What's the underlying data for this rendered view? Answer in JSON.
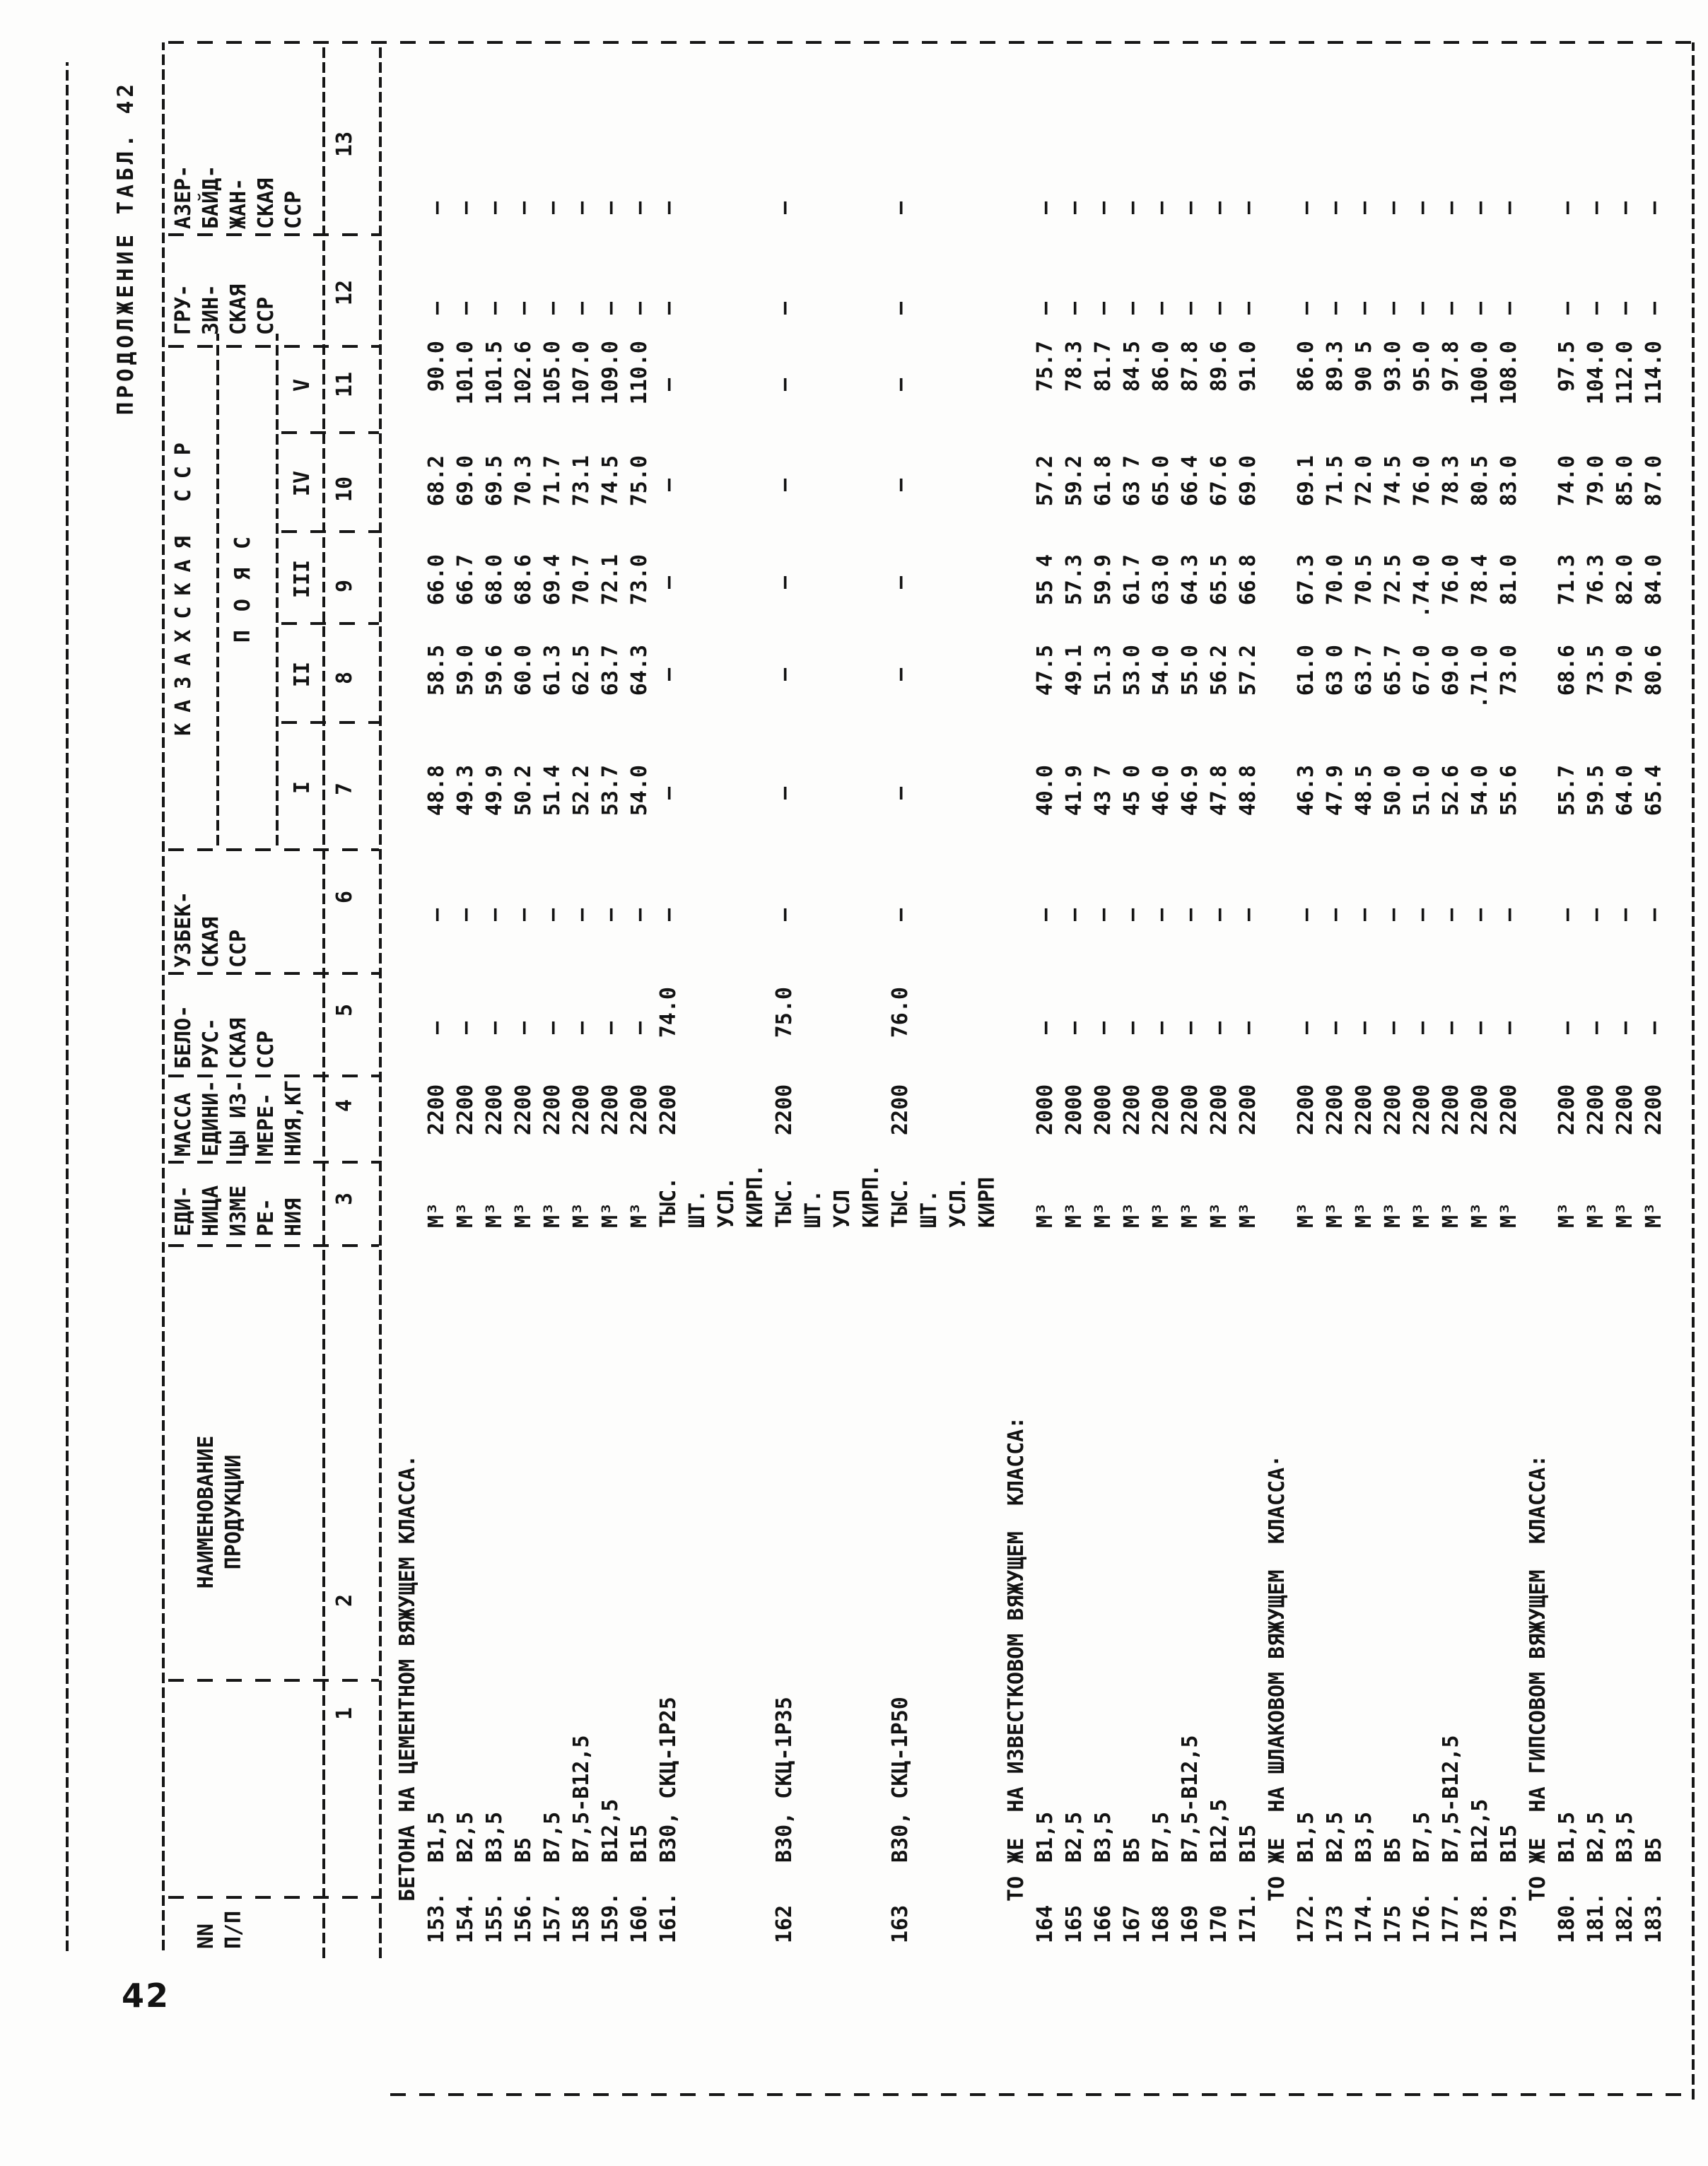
{
  "page_number": "42",
  "caption": "ПРОДОЛЖЕНИЕ ТАБЛ. 42",
  "header": {
    "col1": [
      "NN",
      "П/П"
    ],
    "col2": [
      "НАИМЕНОВАНИЕ",
      "ПРОДУКЦИИ"
    ],
    "col3": [
      "ЕДИ-",
      "НИЦА",
      "ИЗМЕ",
      "РЕ-",
      "НИЯ"
    ],
    "col4": [
      "МАССА",
      "ЕДИНИ-",
      "ЦЫ ИЗ-",
      "МЕРЕ-",
      "НИЯ,КГ"
    ],
    "col5": [
      "БЕЛО-",
      "РУС-",
      "СКАЯ",
      "ССР"
    ],
    "col6": [
      "УЗБЕК-",
      "СКАЯ",
      "ССР"
    ],
    "kazakh": {
      "title": "КАЗАХСКАЯ ССР",
      "subtitle": "ПОЯС",
      "belts": [
        "I",
        "II",
        "III",
        "IV",
        "V"
      ]
    },
    "col12": [
      "ГРУ-",
      "ЗИН-",
      "СКАЯ",
      "ССР"
    ],
    "col13": [
      "АЗЕР-",
      "БАЙД-",
      "ЖАН-",
      "СКАЯ",
      "ССР"
    ]
  },
  "column_numbers": [
    "1",
    "2",
    "3",
    "4",
    "5",
    "6",
    "7",
    "8",
    "9",
    "10",
    "11",
    "12",
    "13"
  ],
  "rows": [
    {
      "section": "БЕТОНА НА ЦЕМЕНТНОМ ВЯЖУЩЕМ КЛАССА."
    },
    {
      "num": "153.",
      "name": "В1,5",
      "unit": [
        "М³"
      ],
      "mass": "2200",
      "bel": "-",
      "uzb": "-",
      "i": "48.8",
      "ii": "58.5",
      "iii": "66.0",
      "iv": "68.2",
      "v": "90.0",
      "gru": "-",
      "azb": "-"
    },
    {
      "num": "154.",
      "name": "В2,5",
      "unit": [
        "М³"
      ],
      "mass": "2200",
      "bel": "-",
      "uzb": "-",
      "i": "49.3",
      "ii": "59.0",
      "iii": "66.7",
      "iv": "69.0",
      "v": "101.0",
      "gru": "-",
      "azb": "-"
    },
    {
      "num": "155.",
      "name": "В3,5",
      "unit": [
        "М³"
      ],
      "mass": "2200",
      "bel": "-",
      "uzb": "-",
      "i": "49.9",
      "ii": "59.6",
      "iii": "68.0",
      "iv": "69.5",
      "v": "101.5",
      "gru": "-",
      "azb": "-"
    },
    {
      "num": "156.",
      "name": "В5",
      "unit": [
        "М³"
      ],
      "mass": "2200",
      "bel": "-",
      "uzb": "-",
      "i": "50.2",
      "ii": "60.0",
      "iii": "68.6",
      "iv": "70.3",
      "v": "102.6",
      "gru": "-",
      "azb": "-"
    },
    {
      "num": "157.",
      "name": "В7,5",
      "unit": [
        "М³"
      ],
      "mass": "2200",
      "bel": "-",
      "uzb": "-",
      "i": "51.4",
      "ii": "61.3",
      "iii": "69.4",
      "iv": "71.7",
      "v": "105.0",
      "gru": "-",
      "azb": "-"
    },
    {
      "num": "158",
      "name": "В7,5-В12,5",
      "unit": [
        "М³"
      ],
      "mass": "2200",
      "bel": "-",
      "uzb": "-",
      "i": "52.2",
      "ii": "62.5",
      "iii": "70.7",
      "iv": "73.1",
      "v": "107.0",
      "gru": "-",
      "azb": "-"
    },
    {
      "num": "159.",
      "name": "В12,5",
      "unit": [
        "М³"
      ],
      "mass": "2200",
      "bel": "-",
      "uzb": "-",
      "i": "53.7",
      "ii": "63.7",
      "iii": "72.1",
      "iv": "74.5",
      "v": "109.0",
      "gru": "-",
      "azb": "-"
    },
    {
      "num": "160.",
      "name": "В15",
      "unit": [
        "М³"
      ],
      "mass": "2200",
      "bel": "-",
      "uzb": "-",
      "i": "54.0",
      "ii": "64.3",
      "iii": "73.0",
      "iv": "75.0",
      "v": "110.0",
      "gru": "-",
      "azb": "-"
    },
    {
      "num": "161.",
      "name": "В30, СКЦ-1Р25",
      "unit": [
        "ТЫС.",
        "ШТ.",
        "УСЛ.",
        "КИРП."
      ],
      "mass": "2200",
      "bel": "74.0",
      "uzb": "-",
      "i": "-",
      "ii": "-",
      "iii": "-",
      "iv": "-",
      "v": "-",
      "gru": "-",
      "azb": "-"
    },
    {
      "num": "162",
      "name": "В30, СКЦ-1Р35",
      "unit": [
        "ТЫС.",
        "ШТ.",
        "УСЛ",
        "КИРП."
      ],
      "mass": "2200",
      "bel": "75.0",
      "uzb": "-",
      "i": "-",
      "ii": "-",
      "iii": "-",
      "iv": "-",
      "v": "-",
      "gru": "-",
      "azb": "-"
    },
    {
      "num": "163",
      "name": "В30, СКЦ-1Р50",
      "unit": [
        "ТЫС.",
        "ШТ.",
        "УСЛ.",
        "КИРП"
      ],
      "mass": "2200",
      "bel": "76.0",
      "uzb": "-",
      "i": "-",
      "ii": "-",
      "iii": "-",
      "iv": "-",
      "v": "-",
      "gru": "-",
      "azb": "-"
    },
    {
      "section": "ТО ЖЕ  НА ИЗВЕСТКОВОМ ВЯЖУЩЕМ  КЛАССА:"
    },
    {
      "num": "164",
      "name": "В1,5",
      "unit": [
        "М³"
      ],
      "mass": "2000",
      "bel": "-",
      "uzb": "-",
      "i": "40.0",
      "ii": "47.5",
      "iii": "55 4",
      "iv": "57.2",
      "v": "75.7",
      "gru": "-",
      "azb": "-"
    },
    {
      "num": "165",
      "name": "В2,5",
      "unit": [
        "М³"
      ],
      "mass": "2000",
      "bel": "-",
      "uzb": "-",
      "i": "41.9",
      "ii": "49.1",
      "iii": "57.3",
      "iv": "59.2",
      "v": "78.3",
      "gru": "-",
      "azb": "-"
    },
    {
      "num": "166",
      "name": "В3,5",
      "unit": [
        "М³"
      ],
      "mass": "2000",
      "bel": "-",
      "uzb": "-",
      "i": "43 7",
      "ii": "51.3",
      "iii": "59.9",
      "iv": "61.8",
      "v": "81.7",
      "gru": "-",
      "azb": "-"
    },
    {
      "num": "167",
      "name": "В5",
      "unit": [
        "М³"
      ],
      "mass": "2200",
      "bel": "-",
      "uzb": "-",
      "i": "45 0",
      "ii": "53.0",
      "iii": "61.7",
      "iv": "63 7",
      "v": "84.5",
      "gru": "-",
      "azb": "-"
    },
    {
      "num": "168",
      "name": "В7,5",
      "unit": [
        "М³"
      ],
      "mass": "2200",
      "bel": "-",
      "uzb": "-",
      "i": "46.0",
      "ii": "54.0",
      "iii": "63.0",
      "iv": "65.0",
      "v": "86.0",
      "gru": "-",
      "azb": "-"
    },
    {
      "num": "169",
      "name": "В7,5-В12,5",
      "unit": [
        "М³"
      ],
      "mass": "2200",
      "bel": "-",
      "uzb": "-",
      "i": "46.9",
      "ii": "55.0",
      "iii": "64.3",
      "iv": "66.4",
      "v": "87.8",
      "gru": "-",
      "azb": "-"
    },
    {
      "num": "170",
      "name": "В12,5",
      "unit": [
        "М³"
      ],
      "mass": "2200",
      "bel": "-",
      "uzb": "-",
      "i": "47.8",
      "ii": "56.2",
      "iii": "65.5",
      "iv": "67.6",
      "v": "89.6",
      "gru": "-",
      "azb": "-"
    },
    {
      "num": "171.",
      "name": "В15",
      "unit": [
        "М³"
      ],
      "mass": "2200",
      "bel": "-",
      "uzb": "-",
      "i": "48.8",
      "ii": "57.2",
      "iii": "66.8",
      "iv": "69.0",
      "v": "91.0",
      "gru": "-",
      "azb": "-"
    },
    {
      "section": "ТО ЖЕ  НА ШЛАКОВОМ ВЯЖУЩЕМ  КЛАССА·"
    },
    {
      "num": "172.",
      "name": "В1,5",
      "unit": [
        "М³"
      ],
      "mass": "2200",
      "bel": "-",
      "uzb": "-",
      "i": "46.3",
      "ii": "61.0",
      "iii": "67.3",
      "iv": "69.1",
      "v": "86.0",
      "gru": "-",
      "azb": "-"
    },
    {
      "num": "173",
      "name": "В2,5",
      "unit": [
        "М³"
      ],
      "mass": "2200",
      "bel": "-",
      "uzb": "-",
      "i": "47.9",
      "ii": "63 0",
      "iii": "70.0",
      "iv": "71.5",
      "v": "89.3",
      "gru": "-",
      "azb": "-"
    },
    {
      "num": "174.",
      "name": "В3,5",
      "unit": [
        "М³"
      ],
      "mass": "2200",
      "bel": "-",
      "uzb": "-",
      "i": "48.5",
      "ii": "63.7",
      "iii": "70.5",
      "iv": "72.0",
      "v": "90 5",
      "gru": "-",
      "azb": "-"
    },
    {
      "num": "175",
      "name": "В5",
      "unit": [
        "М³"
      ],
      "mass": "2200",
      "bel": "-",
      "uzb": "-",
      "i": "50.0",
      "ii": "65.7",
      "iii": "72.5",
      "iv": "74.5",
      "v": "93.0",
      "gru": "-",
      "azb": "-"
    },
    {
      "num": "176.",
      "name": "В7,5",
      "unit": [
        "М³"
      ],
      "mass": "2200",
      "bel": "-",
      "uzb": "-",
      "i": "51.0",
      "ii": "67.0",
      "iii": ".74.0",
      "iv": "76.0",
      "v": "95.0",
      "gru": "-",
      "azb": "-"
    },
    {
      "num": "177.",
      "name": "В7,5-В12,5",
      "unit": [
        "М³"
      ],
      "mass": "2200",
      "bel": "-",
      "uzb": "-",
      "i": "52.6",
      "ii": "69.0",
      "iii": "76.0",
      "iv": "78.3",
      "v": "97.8",
      "gru": "-",
      "azb": "-"
    },
    {
      "num": "178.",
      "name": "В12,5",
      "unit": [
        "М³"
      ],
      "mass": "2200",
      "bel": "-",
      "uzb": "-",
      "i": "54.0",
      "ii": ".71.0",
      "iii": "78.4",
      "iv": "80.5",
      "v": "100.0",
      "gru": "-",
      "azb": "-"
    },
    {
      "num": "179.",
      "name": "В15",
      "unit": [
        "М³"
      ],
      "mass": "2200",
      "bel": "-",
      "uzb": "-",
      "i": "55.6",
      "ii": "73.0",
      "iii": "81.0",
      "iv": "83.0",
      "v": "108.0",
      "gru": "-",
      "azb": "-"
    },
    {
      "section": "ТО ЖЕ  НА ГИПСОВОМ ВЯЖУЩЕМ  КЛАССА:"
    },
    {
      "num": "180.",
      "name": "В1,5",
      "unit": [
        "М³"
      ],
      "mass": "2200",
      "bel": "-",
      "uzb": "-",
      "i": "55.7",
      "ii": "68.6",
      "iii": "71.3",
      "iv": "74.0",
      "v": "97.5",
      "gru": "-",
      "azb": "-"
    },
    {
      "num": "181.",
      "name": "В2,5",
      "unit": [
        "М³"
      ],
      "mass": "2200",
      "bel": "-",
      "uzb": "-",
      "i": "59.5",
      "ii": "73.5",
      "iii": "76.3",
      "iv": "79.0",
      "v": "104.0",
      "gru": "-",
      "azb": "-"
    },
    {
      "num": "182.",
      "name": "В3,5",
      "unit": [
        "М³"
      ],
      "mass": "2200",
      "bel": "-",
      "uzb": "-",
      "i": "64.0",
      "ii": "79.0",
      "iii": "82.0",
      "iv": "85.0",
      "v": "112.0",
      "gru": "-",
      "azb": "-"
    },
    {
      "num": "183.",
      "name": "В5",
      "unit": [
        "М³"
      ],
      "mass": "2200",
      "bel": "-",
      "uzb": "-",
      "i": "65.4",
      "ii": "80.6",
      "iii": "84.0",
      "iv": "87.0",
      "v": "114.0",
      "gru": "-",
      "azb": "-"
    }
  ]
}
